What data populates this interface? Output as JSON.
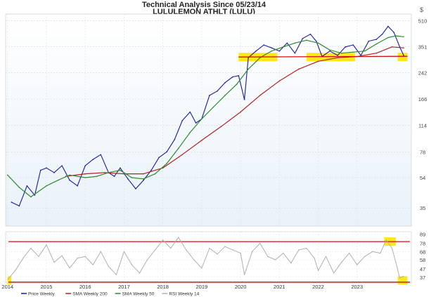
{
  "header": {
    "title": "Technical Analysis Since 05/23/14",
    "subtitle": "LULULEMON ATHLT (LULU)",
    "scale_label": "$"
  },
  "chart_data": [
    {
      "type": "line",
      "panel": "price",
      "yscale": "log",
      "ylim": [
        27,
        560
      ],
      "y_ticks": [
        35,
        54,
        78,
        114,
        166,
        242,
        351,
        510
      ],
      "x_ticks": [
        "2014",
        "2015",
        "2016",
        "2017",
        "2018",
        "2019",
        "2020",
        "2021",
        "2022",
        "2023"
      ],
      "x_tick_years": [
        2014.0,
        2015.0,
        2016.0,
        2017.0,
        2018.0,
        2019.0,
        2020.0,
        2021.0,
        2022.0,
        2023.0
      ],
      "xlim": [
        2013.95,
        2024.4
      ],
      "series": [
        {
          "name": "Price Weekly",
          "color": "#1a1aa0",
          "x": [
            2014.1,
            2014.3,
            2014.5,
            2014.7,
            2014.85,
            2015.0,
            2015.2,
            2015.4,
            2015.6,
            2015.8,
            2016.0,
            2016.2,
            2016.4,
            2016.6,
            2016.75,
            2016.9,
            2017.1,
            2017.3,
            2017.5,
            2017.7,
            2017.9,
            2018.1,
            2018.3,
            2018.5,
            2018.7,
            2018.85,
            2019.0,
            2019.2,
            2019.4,
            2019.6,
            2019.8,
            2019.95,
            2020.1,
            2020.2,
            2020.4,
            2020.6,
            2020.8,
            2021.0,
            2021.2,
            2021.4,
            2021.6,
            2021.8,
            2021.95,
            2022.1,
            2022.3,
            2022.5,
            2022.7,
            2022.9,
            2023.1,
            2023.3,
            2023.5,
            2023.65,
            2023.8,
            2023.95,
            2024.1,
            2024.2
          ],
          "y": [
            38,
            36,
            48,
            42,
            60,
            62,
            58,
            64,
            52,
            48,
            64,
            70,
            75,
            58,
            55,
            62,
            53,
            46,
            52,
            60,
            72,
            78,
            93,
            122,
            138,
            118,
            125,
            175,
            186,
            210,
            228,
            232,
            165,
            300,
            330,
            360,
            345,
            330,
            370,
            320,
            395,
            420,
            380,
            305,
            330,
            310,
            350,
            360,
            310,
            380,
            390,
            420,
            470,
            430,
            350,
            310
          ]
        },
        {
          "name": "SMA Weekly 200",
          "color": "#b22222",
          "x": [
            2015.5,
            2016.0,
            2016.5,
            2017.0,
            2017.5,
            2018.0,
            2018.5,
            2019.0,
            2019.5,
            2020.0,
            2020.5,
            2021.0,
            2021.5,
            2022.0,
            2022.5,
            2023.0,
            2023.5,
            2023.9,
            2024.2
          ],
          "y": [
            55,
            57,
            58,
            57,
            57,
            62,
            75,
            92,
            112,
            138,
            175,
            215,
            255,
            285,
            300,
            305,
            320,
            350,
            345
          ]
        },
        {
          "name": "SMA Weekly 50",
          "color": "#2e8b2e",
          "x": [
            2014.0,
            2014.3,
            2014.6,
            2015.0,
            2015.3,
            2015.6,
            2016.0,
            2016.3,
            2016.6,
            2016.9,
            2017.2,
            2017.5,
            2017.8,
            2018.1,
            2018.4,
            2018.7,
            2019.0,
            2019.3,
            2019.6,
            2019.9,
            2020.2,
            2020.5,
            2020.8,
            2021.1,
            2021.4,
            2021.7,
            2022.0,
            2022.3,
            2022.6,
            2022.9,
            2023.2,
            2023.5,
            2023.8,
            2024.0,
            2024.2
          ],
          "y": [
            56,
            47,
            41,
            48,
            52,
            56,
            54,
            55,
            58,
            60,
            54,
            53,
            57,
            66,
            82,
            103,
            125,
            148,
            175,
            205,
            255,
            300,
            330,
            350,
            370,
            385,
            370,
            335,
            320,
            325,
            330,
            365,
            400,
            410,
            405
          ]
        }
      ]
    },
    {
      "type": "line",
      "panel": "rsi",
      "ylim": [
        30,
        92
      ],
      "y_ticks": [
        37,
        47,
        58,
        68,
        78,
        89
      ],
      "series": [
        {
          "name": "RSI Weekly 14",
          "color": "#b0b0b0",
          "x": [
            2014.0,
            2014.2,
            2014.4,
            2014.6,
            2014.8,
            2015.0,
            2015.2,
            2015.4,
            2015.6,
            2015.8,
            2016.0,
            2016.2,
            2016.4,
            2016.6,
            2016.8,
            2017.0,
            2017.2,
            2017.4,
            2017.6,
            2017.8,
            2018.0,
            2018.2,
            2018.4,
            2018.6,
            2018.8,
            2019.0,
            2019.2,
            2019.4,
            2019.6,
            2019.8,
            2020.0,
            2020.1,
            2020.3,
            2020.5,
            2020.7,
            2020.9,
            2021.1,
            2021.3,
            2021.5,
            2021.7,
            2021.9,
            2022.0,
            2022.2,
            2022.4,
            2022.6,
            2022.8,
            2023.0,
            2023.2,
            2023.4,
            2023.6,
            2023.75,
            2023.9,
            2024.0,
            2024.1,
            2024.2
          ],
          "y": [
            34,
            45,
            60,
            72,
            62,
            76,
            55,
            63,
            48,
            60,
            62,
            52,
            68,
            50,
            40,
            68,
            52,
            42,
            58,
            70,
            82,
            72,
            85,
            70,
            58,
            48,
            72,
            65,
            74,
            70,
            66,
            40,
            68,
            78,
            62,
            58,
            66,
            54,
            70,
            72,
            60,
            45,
            62,
            42,
            55,
            66,
            52,
            62,
            68,
            66,
            82,
            72,
            55,
            36,
            38
          ]
        }
      ],
      "reference_lines": [
        80,
        31
      ]
    }
  ],
  "legend": {
    "items": [
      {
        "label": "Price Weekly",
        "color": "#1a1aa0"
      },
      {
        "label": "SMA Weekly 200",
        "color": "#b22222"
      },
      {
        "label": "SMA Weekly 50",
        "color": "#2e8b2e"
      },
      {
        "label": "RSI Weekly 14",
        "color": "#b0b0b0"
      }
    ]
  },
  "annotations": {
    "support_level": 303,
    "highlight_color": "#ffe600",
    "price_highlights": [
      {
        "x0": 2019.95,
        "x1": 2020.95,
        "y": 303
      },
      {
        "x0": 2021.7,
        "x1": 2022.95,
        "y": 303
      },
      {
        "x0": 2024.05,
        "x1": 2024.3,
        "y": 303
      }
    ],
    "rsi_highlights": [
      {
        "x0": 2014.0,
        "x1": 2014.1,
        "y": 33
      },
      {
        "x0": 2023.7,
        "x1": 2024.0,
        "y": 80
      },
      {
        "x0": 2024.05,
        "x1": 2024.3,
        "y": 33
      }
    ]
  }
}
